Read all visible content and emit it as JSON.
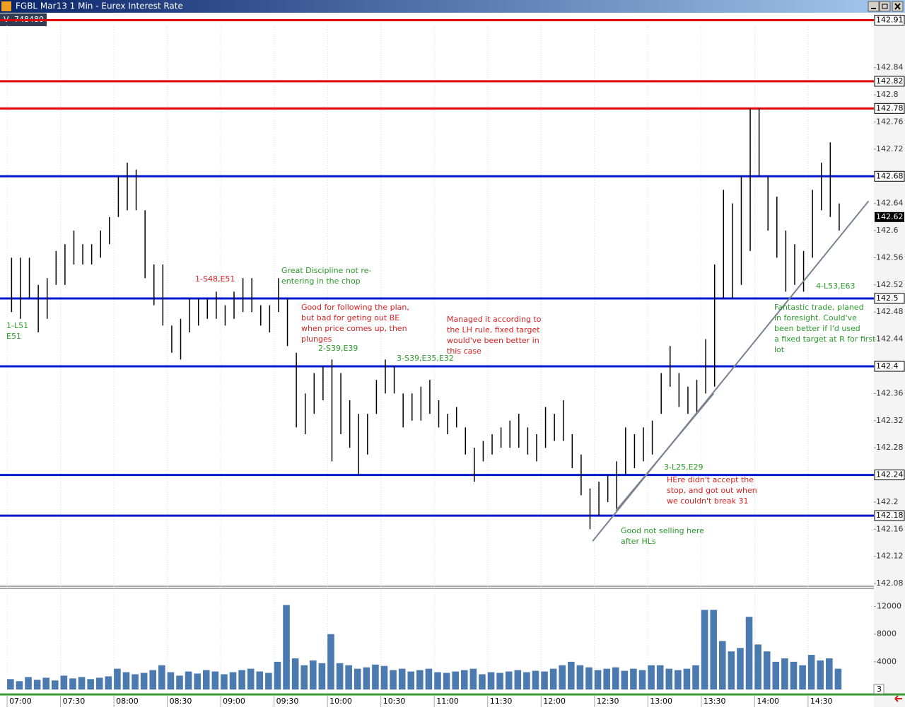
{
  "chart_data": {
    "type": "ohlc",
    "title": "FGBL Mar13 1 Min - Eurex Interest Rate",
    "volume_label": "V",
    "volume_total": 748480,
    "x": [
      "07:00",
      "07:05",
      "07:10",
      "07:15",
      "07:20",
      "07:25",
      "07:30",
      "07:35",
      "07:40",
      "07:45",
      "07:50",
      "07:55",
      "08:00",
      "08:05",
      "08:10",
      "08:15",
      "08:20",
      "08:25",
      "08:30",
      "08:35",
      "08:40",
      "08:45",
      "08:50",
      "08:55",
      "09:00",
      "09:05",
      "09:10",
      "09:15",
      "09:20",
      "09:25",
      "09:30",
      "09:35",
      "09:40",
      "09:45",
      "09:50",
      "09:55",
      "10:00",
      "10:05",
      "10:10",
      "10:15",
      "10:20",
      "10:25",
      "10:30",
      "10:35",
      "10:40",
      "10:45",
      "10:50",
      "10:55",
      "11:00",
      "11:05",
      "11:10",
      "11:15",
      "11:20",
      "11:25",
      "11:30",
      "11:35",
      "11:40",
      "11:45",
      "11:50",
      "11:55",
      "12:00",
      "12:05",
      "12:10",
      "12:15",
      "12:20",
      "12:25",
      "12:30",
      "12:35",
      "12:40",
      "12:45",
      "12:50",
      "12:55",
      "13:00",
      "13:05",
      "13:10",
      "13:15",
      "13:20",
      "13:25",
      "13:30",
      "13:35",
      "13:40",
      "13:45",
      "13:50",
      "13:55",
      "14:00",
      "14:05",
      "14:10",
      "14:15",
      "14:20",
      "14:25",
      "14:30",
      "14:35",
      "14:40",
      "14:45"
    ],
    "high": [
      142.56,
      142.56,
      142.56,
      142.52,
      142.53,
      142.57,
      142.58,
      142.6,
      142.58,
      142.58,
      142.6,
      142.62,
      142.68,
      142.7,
      142.69,
      142.63,
      142.55,
      142.55,
      142.46,
      142.47,
      142.5,
      142.5,
      142.5,
      142.51,
      142.49,
      142.51,
      142.53,
      142.53,
      142.49,
      142.49,
      142.53,
      142.5,
      142.42,
      142.36,
      142.39,
      142.4,
      142.41,
      142.39,
      142.35,
      142.33,
      142.33,
      142.38,
      142.41,
      142.4,
      142.36,
      142.36,
      142.37,
      142.38,
      142.35,
      142.33,
      142.34,
      142.31,
      142.28,
      142.29,
      142.3,
      142.31,
      142.32,
      142.33,
      142.31,
      142.3,
      142.34,
      142.33,
      142.35,
      142.3,
      142.27,
      142.22,
      142.23,
      142.24,
      142.26,
      142.31,
      142.3,
      142.31,
      142.32,
      142.39,
      142.43,
      142.39,
      142.37,
      142.38,
      142.44,
      142.55,
      142.66,
      142.64,
      142.68,
      142.78,
      142.78,
      142.68,
      142.65,
      142.6,
      142.58,
      142.57,
      142.66,
      142.7,
      142.73,
      142.64
    ],
    "low": [
      142.48,
      142.47,
      142.5,
      142.45,
      142.47,
      142.52,
      142.52,
      142.55,
      142.55,
      142.55,
      142.56,
      142.58,
      142.62,
      142.63,
      142.63,
      142.53,
      142.49,
      142.46,
      142.42,
      142.41,
      142.45,
      142.46,
      142.47,
      142.47,
      142.46,
      142.47,
      142.48,
      142.48,
      142.46,
      142.45,
      142.48,
      142.43,
      142.31,
      142.3,
      142.33,
      142.35,
      142.26,
      142.3,
      142.28,
      142.24,
      142.27,
      142.33,
      142.36,
      142.36,
      142.31,
      142.32,
      142.32,
      142.33,
      142.31,
      142.3,
      142.31,
      142.27,
      142.23,
      142.26,
      142.27,
      142.28,
      142.28,
      142.28,
      142.27,
      142.26,
      142.28,
      142.29,
      142.29,
      142.25,
      142.21,
      142.16,
      142.18,
      142.2,
      142.19,
      142.24,
      142.25,
      142.26,
      142.27,
      142.33,
      142.37,
      142.34,
      142.33,
      142.33,
      142.36,
      142.37,
      142.5,
      142.5,
      142.52,
      142.57,
      142.68,
      142.6,
      142.56,
      142.51,
      142.52,
      142.51,
      142.56,
      142.63,
      142.62,
      142.6
    ],
    "volume": [
      1500,
      1200,
      1800,
      1400,
      1700,
      1300,
      2000,
      1600,
      1800,
      1500,
      1700,
      1900,
      3000,
      2500,
      2200,
      2400,
      2800,
      3500,
      2500,
      2000,
      2600,
      2300,
      2800,
      2600,
      2200,
      2500,
      2800,
      3000,
      2600,
      2400,
      4000,
      12200,
      4500,
      3500,
      4200,
      3800,
      8000,
      3800,
      3500,
      3000,
      3200,
      3600,
      3400,
      2800,
      3000,
      2600,
      2800,
      3000,
      2500,
      2400,
      2600,
      2800,
      3000,
      2200,
      2500,
      2400,
      2600,
      2800,
      2500,
      2700,
      2600,
      3000,
      3500,
      4000,
      3500,
      3200,
      2800,
      3000,
      3200,
      2700,
      3000,
      2800,
      3500,
      3500,
      3000,
      2800,
      3000,
      3500,
      11500,
      11500,
      7000,
      5500,
      6000,
      10500,
      6500,
      5500,
      4000,
      4500,
      4000,
      3500,
      5000,
      4200,
      4500,
      3000
    ],
    "bar_color": "#000000",
    "volume_color": "#4a7ab0",
    "xlim": [
      "06:56",
      "15:07"
    ],
    "xticks": [
      "07:00",
      "07:30",
      "08:00",
      "08:30",
      "09:00",
      "09:30",
      "10:00",
      "10:30",
      "11:00",
      "11:30",
      "12:00",
      "12:30",
      "13:00",
      "13:30",
      "14:00",
      "14:30"
    ],
    "ylim": [
      142.077,
      142.921
    ],
    "yticks": [
      142.08,
      142.12,
      142.16,
      142.2,
      142.24,
      142.28,
      142.32,
      142.36,
      142.4,
      142.44,
      142.48,
      142.52,
      142.56,
      142.6,
      142.64,
      142.68,
      142.72,
      142.76,
      142.8,
      142.84
    ],
    "levels": [
      {
        "value": 142.91,
        "color": "#e00000"
      },
      {
        "value": 142.82,
        "color": "#e00000"
      },
      {
        "value": 142.78,
        "color": "#e00000"
      },
      {
        "value": 142.68,
        "color": "#0018d0"
      },
      {
        "value": 142.5,
        "color": "#0018d0"
      },
      {
        "value": 142.4,
        "color": "#0018d0"
      },
      {
        "value": 142.24,
        "color": "#0018d0"
      },
      {
        "value": 142.18,
        "color": "#0018d0"
      }
    ],
    "last_price": 142.62,
    "trendlines": [
      {
        "x": [
          "12:29",
          "15:04"
        ],
        "y": [
          142.1425,
          142.6435
        ],
        "color": "#7a8290"
      },
      {
        "x": [
          "12:42",
          "13:37"
        ],
        "y": [
          142.187,
          142.36
        ],
        "color": "#7a8290"
      }
    ],
    "annotations": [
      {
        "lines": [
          "1-L51",
          "E51"
        ],
        "color": "#2a9a2a"
      },
      {
        "lines": [
          "1-S48,E51"
        ],
        "color": "#d82020"
      },
      {
        "lines": [
          "Great Discipline not re-",
          "entering in the chop"
        ],
        "color": "#2a9a2a"
      },
      {
        "lines": [
          "Good for following the plan,",
          "but bad for geting out BE",
          "when price comes up, then",
          "plunges"
        ],
        "color": "#d82020"
      },
      {
        "lines": [
          "2-S39,E39"
        ],
        "color": "#2a9a2a"
      },
      {
        "lines": [
          "3-S39,E35,E32"
        ],
        "color": "#2a9a2a"
      },
      {
        "lines": [
          "Managed it according to",
          "the LH rule, fixed target",
          "would've been better in",
          "this case"
        ],
        "color": "#d82020"
      },
      {
        "lines": [
          "3-L25,E29"
        ],
        "color": "#2a9a2a"
      },
      {
        "lines": [
          "HEre didn't accept the",
          "stop, and got out when",
          "we couldn't break 31"
        ],
        "color": "#d82020"
      },
      {
        "lines": [
          "Good not selling here",
          "after HLs"
        ],
        "color": "#2a9a2a"
      },
      {
        "lines": [
          "4-L53,E63"
        ],
        "color": "#2a9a2a"
      },
      {
        "lines": [
          "Fantastic trade, planed",
          "in foresight. Could've",
          "been better if I'd used",
          "a fixed target at R for first",
          "lot"
        ],
        "color": "#2a9a2a"
      }
    ],
    "volume_ylim": [
      0,
      14300
    ],
    "volume_yticks": [
      4000,
      8000,
      12000
    ],
    "volume_pane_label": "3"
  }
}
